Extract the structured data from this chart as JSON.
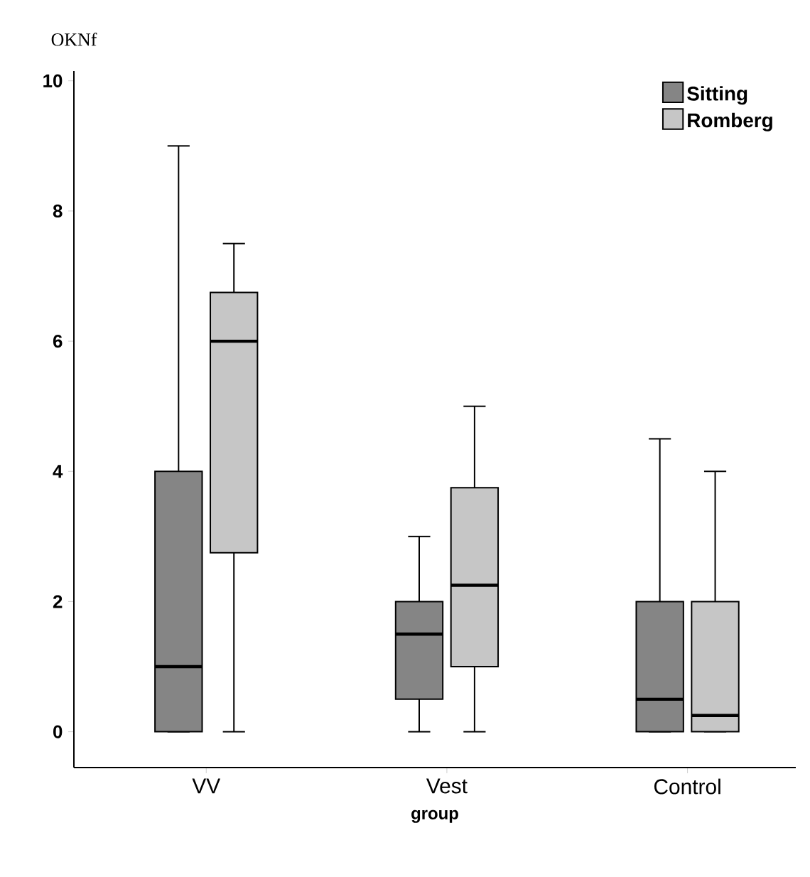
{
  "chart_data": {
    "type": "box",
    "ylabel": "OKNf",
    "xlabel": "group",
    "categories": [
      "VV",
      "Vest",
      "Control"
    ],
    "series": [
      {
        "name": "Sitting",
        "color": "#858585",
        "boxes": [
          {
            "low": 0,
            "q1": 0,
            "median": 1,
            "q3": 4,
            "high": 9
          },
          {
            "low": 0,
            "q1": 0.5,
            "median": 1.5,
            "q3": 2,
            "high": 3
          },
          {
            "low": 0,
            "q1": 0,
            "median": 0.5,
            "q3": 2,
            "high": 4.5
          }
        ]
      },
      {
        "name": "Romberg",
        "color": "#c6c6c6",
        "boxes": [
          {
            "low": 0,
            "q1": 2.75,
            "median": 6,
            "q3": 6.75,
            "high": 7.5
          },
          {
            "low": 0,
            "q1": 1,
            "median": 2.25,
            "q3": 3.75,
            "high": 5
          },
          {
            "low": 0,
            "q1": 0,
            "median": 0.25,
            "q3": 2,
            "high": 4
          }
        ]
      }
    ],
    "ylim": [
      -0.55,
      10.15
    ],
    "yticks": [
      0,
      2,
      4,
      6,
      8,
      10
    ],
    "legend": "top right"
  }
}
